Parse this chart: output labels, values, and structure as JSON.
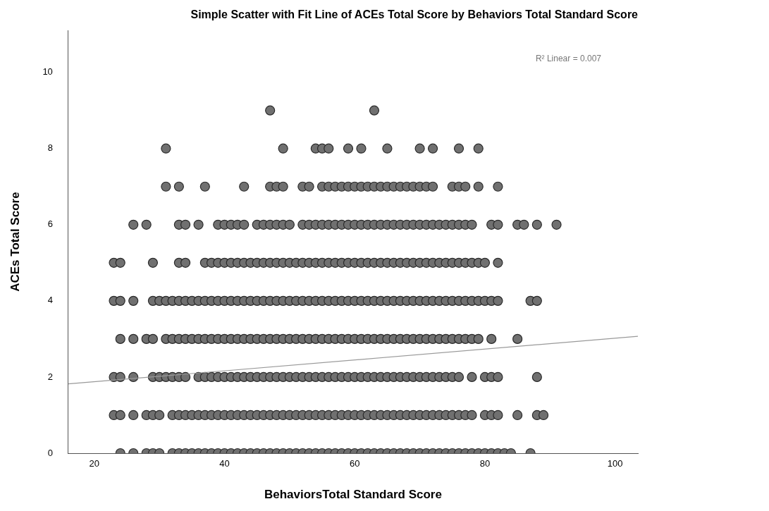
{
  "chart_data": {
    "type": "scatter",
    "title": "Simple Scatter with Fit Line of ACEs Total Score by Behaviors Total Standard Score",
    "xlabel": "BehaviorsTotal Standard Score",
    "ylabel": "ACEs Total Score",
    "annotations": [
      "R² Linear = 0.007"
    ],
    "marker": "circle",
    "grid": false,
    "legend": false,
    "xlim": [
      16,
      103.5
    ],
    "xticks": [
      20,
      40,
      60,
      80,
      100
    ],
    "ylim": [
      0,
      11.1
    ],
    "yticks": [
      0,
      2,
      4,
      6,
      8,
      10
    ],
    "series": [
      {
        "color": "#707070",
        "x": [
          24,
          26,
          28,
          29,
          30,
          32,
          33,
          34,
          35,
          36,
          37,
          38,
          39,
          40,
          41,
          42,
          43,
          44,
          45,
          46,
          47,
          48,
          49,
          50,
          51,
          52,
          53,
          54,
          55,
          56,
          57,
          58,
          59,
          60,
          61,
          62,
          63,
          64,
          65,
          66,
          67,
          68,
          69,
          70,
          71,
          72,
          73,
          74,
          75,
          76,
          77,
          78,
          79,
          80,
          81,
          82,
          83,
          84,
          87
        ],
        "values": [
          0,
          0,
          0,
          0,
          0,
          0,
          0,
          0,
          0,
          0,
          0,
          0,
          0,
          0,
          0,
          0,
          0,
          0,
          0,
          0,
          0,
          0,
          0,
          0,
          0,
          0,
          0,
          0,
          0,
          0,
          0,
          0,
          0,
          0,
          0,
          0,
          0,
          0,
          0,
          0,
          0,
          0,
          0,
          0,
          0,
          0,
          0,
          0,
          0,
          0,
          0,
          0,
          0,
          0,
          0,
          0,
          0,
          0,
          0
        ]
      },
      {
        "color": "#707070",
        "x": [
          23,
          24,
          26,
          28,
          29,
          30,
          32,
          33,
          34,
          35,
          36,
          37,
          38,
          39,
          40,
          41,
          42,
          43,
          44,
          45,
          46,
          47,
          48,
          49,
          50,
          51,
          52,
          53,
          54,
          55,
          56,
          57,
          58,
          59,
          60,
          61,
          62,
          63,
          64,
          65,
          66,
          67,
          68,
          69,
          70,
          71,
          72,
          73,
          74,
          75,
          76,
          77,
          78,
          80,
          81,
          82,
          85,
          88,
          89
        ],
        "values": [
          1,
          1,
          1,
          1,
          1,
          1,
          1,
          1,
          1,
          1,
          1,
          1,
          1,
          1,
          1,
          1,
          1,
          1,
          1,
          1,
          1,
          1,
          1,
          1,
          1,
          1,
          1,
          1,
          1,
          1,
          1,
          1,
          1,
          1,
          1,
          1,
          1,
          1,
          1,
          1,
          1,
          1,
          1,
          1,
          1,
          1,
          1,
          1,
          1,
          1,
          1,
          1,
          1,
          1,
          1,
          1,
          1,
          1,
          1
        ]
      },
      {
        "color": "#707070",
        "x": [
          23,
          24,
          26,
          29,
          30,
          31,
          32,
          33,
          34,
          36,
          37,
          38,
          39,
          40,
          41,
          42,
          43,
          44,
          45,
          46,
          47,
          48,
          49,
          50,
          51,
          52,
          53,
          54,
          55,
          56,
          57,
          58,
          59,
          60,
          61,
          62,
          63,
          64,
          65,
          66,
          67,
          68,
          69,
          70,
          71,
          72,
          73,
          74,
          75,
          76,
          78,
          80,
          81,
          82,
          88
        ],
        "values": [
          2,
          2,
          2,
          2,
          2,
          2,
          2,
          2,
          2,
          2,
          2,
          2,
          2,
          2,
          2,
          2,
          2,
          2,
          2,
          2,
          2,
          2,
          2,
          2,
          2,
          2,
          2,
          2,
          2,
          2,
          2,
          2,
          2,
          2,
          2,
          2,
          2,
          2,
          2,
          2,
          2,
          2,
          2,
          2,
          2,
          2,
          2,
          2,
          2,
          2,
          2,
          2,
          2,
          2,
          2
        ]
      },
      {
        "color": "#707070",
        "x": [
          24,
          26,
          28,
          29,
          31,
          32,
          33,
          34,
          35,
          36,
          37,
          38,
          39,
          40,
          41,
          42,
          43,
          44,
          45,
          46,
          47,
          48,
          49,
          50,
          51,
          52,
          53,
          54,
          55,
          56,
          57,
          58,
          59,
          60,
          61,
          62,
          63,
          64,
          65,
          66,
          67,
          68,
          69,
          70,
          71,
          72,
          73,
          74,
          75,
          76,
          77,
          78,
          79,
          81,
          85
        ],
        "values": [
          3,
          3,
          3,
          3,
          3,
          3,
          3,
          3,
          3,
          3,
          3,
          3,
          3,
          3,
          3,
          3,
          3,
          3,
          3,
          3,
          3,
          3,
          3,
          3,
          3,
          3,
          3,
          3,
          3,
          3,
          3,
          3,
          3,
          3,
          3,
          3,
          3,
          3,
          3,
          3,
          3,
          3,
          3,
          3,
          3,
          3,
          3,
          3,
          3,
          3,
          3,
          3,
          3,
          3,
          3
        ]
      },
      {
        "color": "#707070",
        "x": [
          23,
          24,
          26,
          29,
          30,
          31,
          32,
          33,
          34,
          35,
          36,
          37,
          38,
          39,
          40,
          41,
          42,
          43,
          44,
          45,
          46,
          47,
          48,
          49,
          50,
          51,
          52,
          53,
          54,
          55,
          56,
          57,
          58,
          59,
          60,
          61,
          62,
          63,
          64,
          65,
          66,
          67,
          68,
          69,
          70,
          71,
          72,
          73,
          74,
          75,
          76,
          77,
          78,
          79,
          80,
          81,
          82,
          87,
          88
        ],
        "values": [
          4,
          4,
          4,
          4,
          4,
          4,
          4,
          4,
          4,
          4,
          4,
          4,
          4,
          4,
          4,
          4,
          4,
          4,
          4,
          4,
          4,
          4,
          4,
          4,
          4,
          4,
          4,
          4,
          4,
          4,
          4,
          4,
          4,
          4,
          4,
          4,
          4,
          4,
          4,
          4,
          4,
          4,
          4,
          4,
          4,
          4,
          4,
          4,
          4,
          4,
          4,
          4,
          4,
          4,
          4,
          4,
          4,
          4,
          4
        ]
      },
      {
        "color": "#707070",
        "x": [
          23,
          24,
          29,
          33,
          34,
          37,
          38,
          39,
          40,
          41,
          42,
          43,
          44,
          45,
          46,
          47,
          48,
          49,
          50,
          51,
          52,
          53,
          54,
          55,
          56,
          57,
          58,
          59,
          60,
          61,
          62,
          63,
          64,
          65,
          66,
          67,
          68,
          69,
          70,
          71,
          72,
          73,
          74,
          75,
          76,
          77,
          78,
          79,
          80,
          82
        ],
        "values": [
          5,
          5,
          5,
          5,
          5,
          5,
          5,
          5,
          5,
          5,
          5,
          5,
          5,
          5,
          5,
          5,
          5,
          5,
          5,
          5,
          5,
          5,
          5,
          5,
          5,
          5,
          5,
          5,
          5,
          5,
          5,
          5,
          5,
          5,
          5,
          5,
          5,
          5,
          5,
          5,
          5,
          5,
          5,
          5,
          5,
          5,
          5,
          5,
          5,
          5
        ]
      },
      {
        "color": "#707070",
        "x": [
          26,
          28,
          33,
          34,
          36,
          39,
          40,
          41,
          42,
          43,
          45,
          46,
          47,
          48,
          49,
          50,
          52,
          53,
          54,
          55,
          56,
          57,
          58,
          59,
          60,
          61,
          62,
          63,
          64,
          65,
          66,
          67,
          68,
          69,
          70,
          71,
          72,
          73,
          74,
          75,
          76,
          77,
          78,
          81,
          82,
          85,
          86,
          88,
          91
        ],
        "values": [
          6,
          6,
          6,
          6,
          6,
          6,
          6,
          6,
          6,
          6,
          6,
          6,
          6,
          6,
          6,
          6,
          6,
          6,
          6,
          6,
          6,
          6,
          6,
          6,
          6,
          6,
          6,
          6,
          6,
          6,
          6,
          6,
          6,
          6,
          6,
          6,
          6,
          6,
          6,
          6,
          6,
          6,
          6,
          6,
          6,
          6,
          6,
          6,
          6
        ]
      },
      {
        "color": "#707070",
        "x": [
          31,
          33,
          37,
          43,
          47,
          48,
          49,
          52,
          53,
          55,
          56,
          57,
          58,
          59,
          60,
          61,
          62,
          63,
          64,
          65,
          66,
          67,
          68,
          69,
          70,
          71,
          72,
          75,
          76,
          77,
          79,
          82
        ],
        "values": [
          7,
          7,
          7,
          7,
          7,
          7,
          7,
          7,
          7,
          7,
          7,
          7,
          7,
          7,
          7,
          7,
          7,
          7,
          7,
          7,
          7,
          7,
          7,
          7,
          7,
          7,
          7,
          7,
          7,
          7,
          7,
          7
        ]
      },
      {
        "color": "#707070",
        "x": [
          31,
          49,
          54,
          55,
          56,
          59,
          61,
          65,
          70,
          72,
          76,
          79
        ],
        "values": [
          8,
          8,
          8,
          8,
          8,
          8,
          8,
          8,
          8,
          8,
          8,
          8
        ]
      },
      {
        "color": "#707070",
        "x": [
          47,
          63
        ],
        "values": [
          9,
          9
        ]
      },
      {
        "type": "line",
        "marker": "none",
        "color": "#999999",
        "x": [
          16,
          103.5
        ],
        "values": [
          1.82,
          3.07
        ]
      }
    ]
  }
}
